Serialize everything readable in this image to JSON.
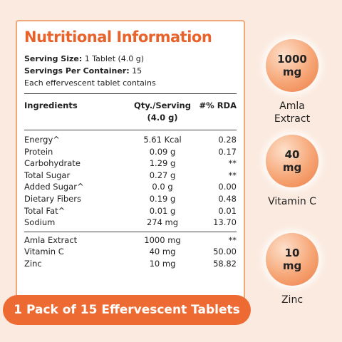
{
  "header": {
    "title": "Nutritional Information",
    "serving_size_label": "Serving Size:",
    "serving_size": "1 Tablet (4.0 g)",
    "servings_label": "Servings Per Container:",
    "servings": "15",
    "note": "Each effervescent tablet contains"
  },
  "table": {
    "columns": [
      "Ingredients",
      "Qty./Serving",
      "(4.0 g)",
      "#% RDA"
    ],
    "groups": [
      [
        [
          "Energy^",
          "5.61 Kcal",
          "0.28"
        ],
        [
          "Protein",
          "0.09 g",
          "0.17"
        ],
        [
          "Carbohydrate",
          "1.29 g",
          "**"
        ],
        [
          "Total Sugar",
          "0.27 g",
          "**"
        ],
        [
          "Added Sugar^",
          "0.0 g",
          "0.00"
        ],
        [
          "Dietary Fibers",
          "0.19 g",
          "0.48"
        ],
        [
          "Total Fat^",
          "0.01 g",
          "0.01"
        ],
        [
          "Sodium",
          "274 mg",
          "13.70"
        ]
      ],
      [
        [
          "Amla Extract",
          "1000 mg",
          "**"
        ],
        [
          "Vitamin C",
          "40 mg",
          "50.00"
        ],
        [
          "Zinc",
          "10 mg",
          "58.82"
        ]
      ]
    ]
  },
  "banner": "1 Pack of 15 Effervescent Tablets",
  "highlights": [
    {
      "value": "1000",
      "unit": "mg",
      "label": "Amla Extract"
    },
    {
      "value": "40",
      "unit": "mg",
      "label": "Vitamin C"
    },
    {
      "value": "10",
      "unit": "mg",
      "label": "Zinc"
    }
  ]
}
